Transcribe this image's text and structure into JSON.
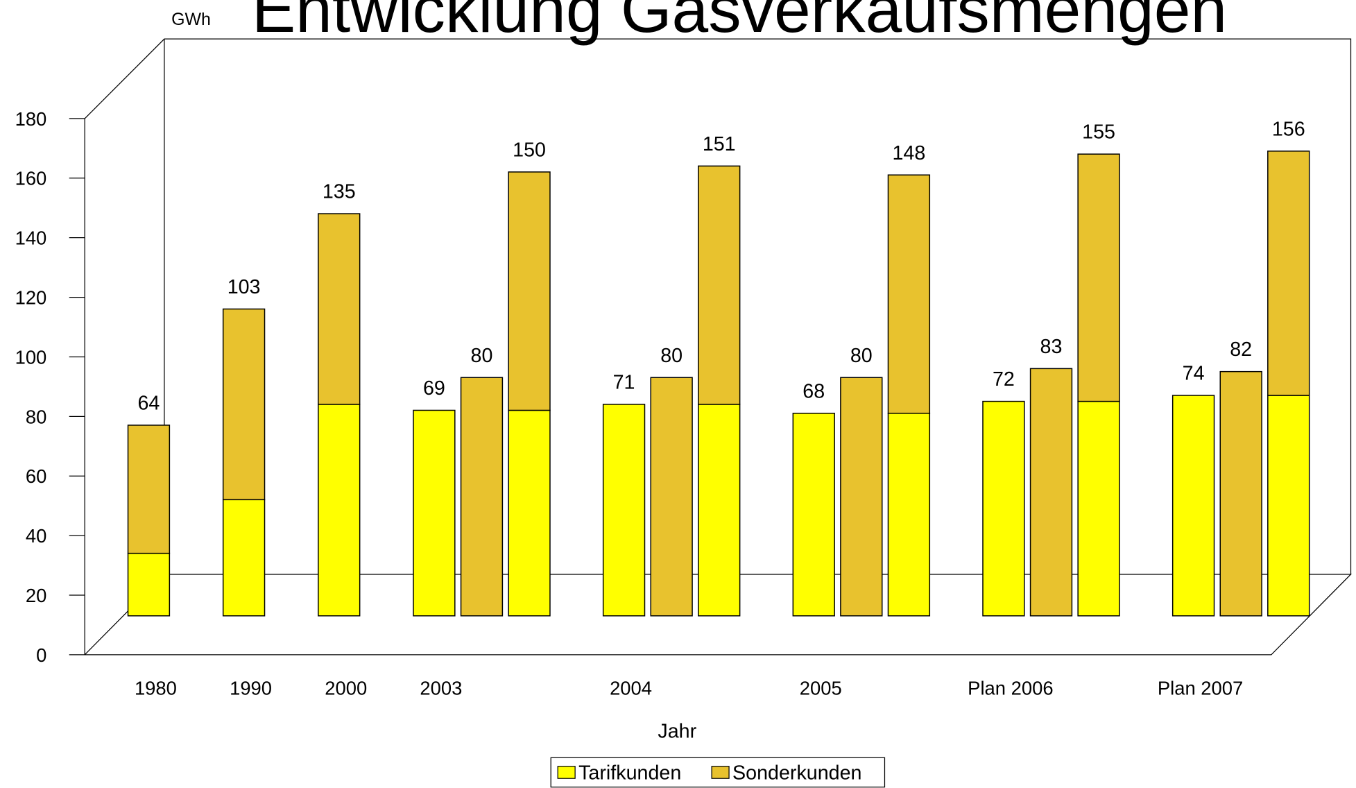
{
  "chart_data": {
    "type": "bar",
    "stacked": true,
    "title": "Entwicklung Gasverkaufsmengen",
    "y_label": "GWh",
    "x_label": "Jahr",
    "categories": [
      "1980",
      "1990",
      "2000",
      "2003",
      "2004",
      "2005",
      "Plan 2006",
      "Plan 2007"
    ],
    "series": [
      {
        "name": "Tarifkunden",
        "color": "#ffff00",
        "values": [
          21,
          39,
          71,
          69,
          71,
          68,
          72,
          74
        ]
      },
      {
        "name": "Sonderkunden",
        "color": "#e8c22e",
        "values": [
          43,
          64,
          64,
          80,
          80,
          80,
          83,
          82
        ]
      }
    ],
    "totals": [
      64,
      103,
      135,
      150,
      151,
      148,
      155,
      156
    ],
    "split": [
      false,
      false,
      false,
      true,
      true,
      true,
      true,
      true
    ],
    "ylim": [
      0,
      180
    ],
    "yticks": [
      0,
      20,
      40,
      60,
      80,
      100,
      120,
      140,
      160,
      180
    ],
    "legend": "bottom"
  }
}
